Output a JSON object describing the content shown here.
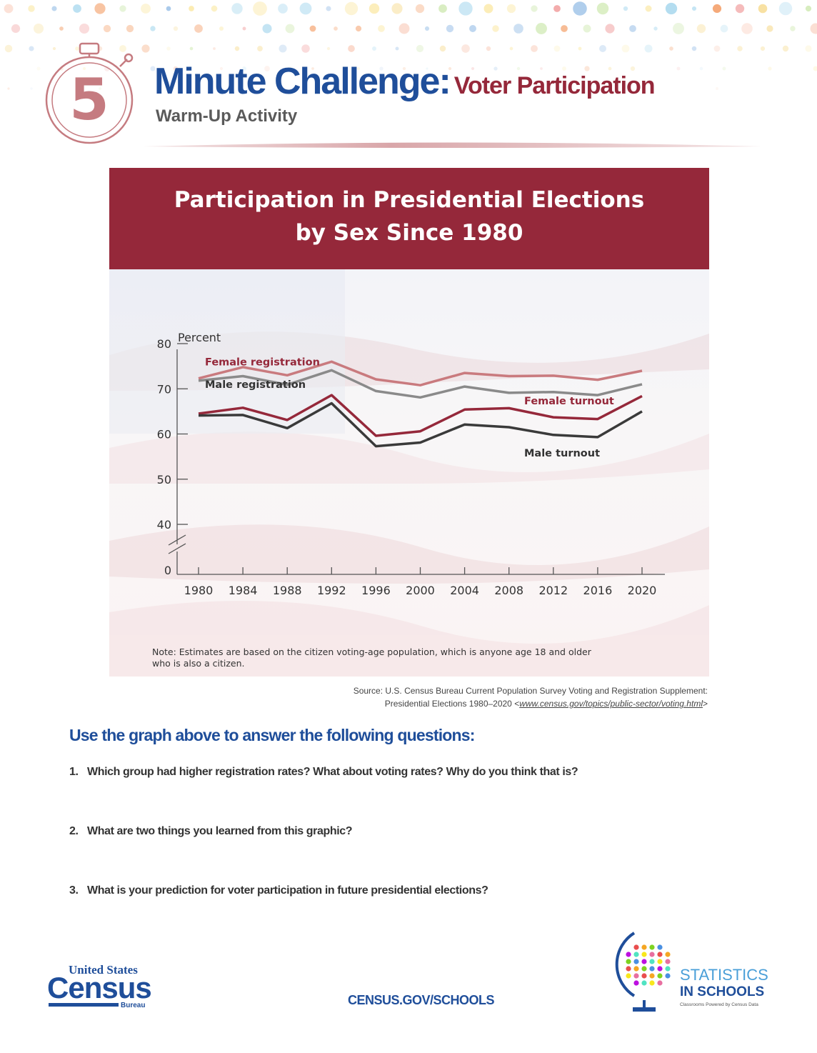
{
  "header": {
    "logo_number": "5",
    "title_main": "Minute Challenge:",
    "title_sub": "Voter Participation",
    "subtitle": "Warm-Up Activity"
  },
  "chart_data": {
    "type": "line",
    "title_line1": "Participation in Presidential Elections",
    "title_line2": "by Sex Since 1980",
    "ylabel": "Percent",
    "y_ticks": [
      0,
      40,
      50,
      60,
      70,
      80
    ],
    "y_axis_break": true,
    "ylim": [
      40,
      80
    ],
    "x": [
      1980,
      1984,
      1988,
      1992,
      1996,
      2000,
      2004,
      2008,
      2012,
      2016,
      2020
    ],
    "series": [
      {
        "name": "Female registration",
        "color": "#c97a7e",
        "values": [
          72.3,
          74.8,
          73.0,
          76.0,
          72.1,
          70.8,
          73.5,
          72.8,
          72.9,
          72.0,
          74.0
        ]
      },
      {
        "name": "Male registration",
        "color": "#8a8a8a",
        "values": [
          71.8,
          72.8,
          70.9,
          74.1,
          69.5,
          68.1,
          70.5,
          69.1,
          69.3,
          68.6,
          71.0
        ]
      },
      {
        "name": "Female turnout",
        "color": "#95283a",
        "values": [
          64.5,
          65.8,
          63.1,
          68.6,
          59.6,
          60.6,
          65.4,
          65.7,
          63.7,
          63.3,
          68.4
        ]
      },
      {
        "name": "Male turnout",
        "color": "#3a3a3a",
        "values": [
          64.1,
          64.2,
          61.3,
          66.8,
          57.3,
          58.1,
          62.1,
          61.5,
          59.8,
          59.3,
          65.0
        ]
      }
    ],
    "grid": false,
    "note_line1": "Note: Estimates are based on the citizen voting-age population, which is anyone age 18 and older",
    "note_line2": "who is also a citizen."
  },
  "source": {
    "line1": "Source: U.S. Census Bureau Current Population Survey Voting and Registration Supplement:",
    "line2_prefix": "Presidential Elections 1980–2020  <",
    "line2_link": "www.census.gov/topics/public-sector/voting.html",
    "line2_suffix": ">"
  },
  "questions": {
    "heading": "Use the graph above to answer the following questions:",
    "items": [
      {
        "num": "1.",
        "text": "Which group had higher registration rates?  What about voting rates?  Why do you think that is?"
      },
      {
        "num": "2.",
        "text": "What are two things you learned from this graphic?"
      },
      {
        "num": "3.",
        "text": "What is your prediction for voter participation in future presidential elections?"
      }
    ]
  },
  "footer": {
    "census_line1": "United States",
    "census_line2": "Census",
    "census_line3": "Bureau",
    "url": "CENSUS.GOV/SCHOOLS",
    "sis_line1": "STATISTICS",
    "sis_line2": "IN SCHOOLS",
    "sis_tagline": "Classrooms Powered by Census Data"
  },
  "colors": {
    "brand_blue": "#1f4e9a",
    "brand_red": "#95283a"
  }
}
